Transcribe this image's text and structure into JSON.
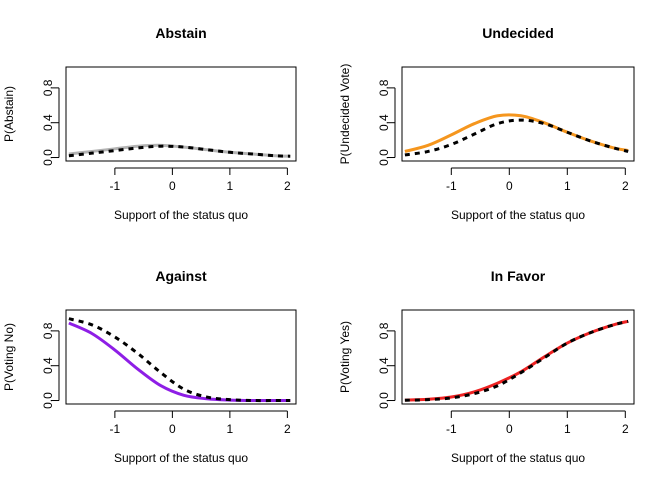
{
  "chart_data": [
    {
      "type": "line",
      "title": "Abstain",
      "xlabel": "Support of the status quo",
      "ylabel": "P(Abstain)",
      "xlim": [
        -1.85,
        2.15
      ],
      "ylim": [
        -0.04,
        1.04
      ],
      "xticks": [
        -1,
        0,
        1,
        2
      ],
      "yticks": [
        0.0,
        0.4,
        0.8
      ],
      "x": [
        -1.8,
        -1.4,
        -1.0,
        -0.6,
        -0.2,
        0.2,
        0.6,
        1.0,
        1.4,
        1.8,
        2.05
      ],
      "series": [
        {
          "color": "#b3b3b3",
          "dash": false,
          "values": [
            0.04,
            0.07,
            0.1,
            0.13,
            0.14,
            0.12,
            0.09,
            0.06,
            0.04,
            0.02,
            0.015
          ]
        },
        {
          "color": "#000000",
          "dash": true,
          "values": [
            0.02,
            0.05,
            0.08,
            0.11,
            0.13,
            0.12,
            0.09,
            0.06,
            0.04,
            0.02,
            0.015
          ]
        }
      ]
    },
    {
      "type": "line",
      "title": "Undecided",
      "xlabel": "Support of the status quo",
      "ylabel": "P(Undecided Vote)",
      "xlim": [
        -1.85,
        2.15
      ],
      "ylim": [
        -0.04,
        1.04
      ],
      "xticks": [
        -1,
        0,
        1,
        2
      ],
      "yticks": [
        0.0,
        0.4,
        0.8
      ],
      "x": [
        -1.8,
        -1.4,
        -1.0,
        -0.6,
        -0.2,
        0.2,
        0.6,
        1.0,
        1.4,
        1.8,
        2.05
      ],
      "series": [
        {
          "color": "#f5961e",
          "dash": false,
          "values": [
            0.07,
            0.14,
            0.26,
            0.39,
            0.48,
            0.48,
            0.4,
            0.29,
            0.19,
            0.11,
            0.08
          ]
        },
        {
          "color": "#000000",
          "dash": true,
          "values": [
            0.03,
            0.07,
            0.15,
            0.27,
            0.39,
            0.43,
            0.39,
            0.29,
            0.19,
            0.11,
            0.07
          ]
        }
      ]
    },
    {
      "type": "line",
      "title": "Against",
      "xlabel": "Support of the status quo",
      "ylabel": "P(Voting No)",
      "xlim": [
        -1.85,
        2.15
      ],
      "ylim": [
        -0.04,
        1.04
      ],
      "xticks": [
        -1,
        0,
        1,
        2
      ],
      "yticks": [
        0.0,
        0.4,
        0.8
      ],
      "x": [
        -1.8,
        -1.4,
        -1.0,
        -0.6,
        -0.2,
        0.2,
        0.6,
        1.0,
        1.4,
        1.8,
        2.05
      ],
      "series": [
        {
          "color": "#8e1ee6",
          "dash": false,
          "values": [
            0.89,
            0.77,
            0.58,
            0.36,
            0.17,
            0.06,
            0.02,
            0.005,
            0.0,
            0.0,
            0.0
          ]
        },
        {
          "color": "#000000",
          "dash": true,
          "values": [
            0.94,
            0.87,
            0.73,
            0.54,
            0.32,
            0.13,
            0.04,
            0.01,
            0.0,
            0.0,
            0.0
          ]
        }
      ]
    },
    {
      "type": "line",
      "title": "In Favor",
      "xlabel": "Support of the status quo",
      "ylabel": "P(Voting Yes)",
      "xlim": [
        -1.85,
        2.15
      ],
      "ylim": [
        -0.04,
        1.04
      ],
      "xticks": [
        -1,
        0,
        1,
        2
      ],
      "yticks": [
        0.0,
        0.4,
        0.8
      ],
      "x": [
        -1.8,
        -1.4,
        -1.0,
        -0.6,
        -0.2,
        0.2,
        0.6,
        1.0,
        1.4,
        1.8,
        2.05
      ],
      "series": [
        {
          "color": "#ee2222",
          "dash": false,
          "values": [
            0.005,
            0.015,
            0.04,
            0.1,
            0.2,
            0.33,
            0.5,
            0.66,
            0.78,
            0.87,
            0.91
          ]
        },
        {
          "color": "#000000",
          "dash": true,
          "values": [
            0.003,
            0.01,
            0.03,
            0.08,
            0.17,
            0.32,
            0.49,
            0.66,
            0.78,
            0.87,
            0.91
          ]
        }
      ]
    }
  ]
}
